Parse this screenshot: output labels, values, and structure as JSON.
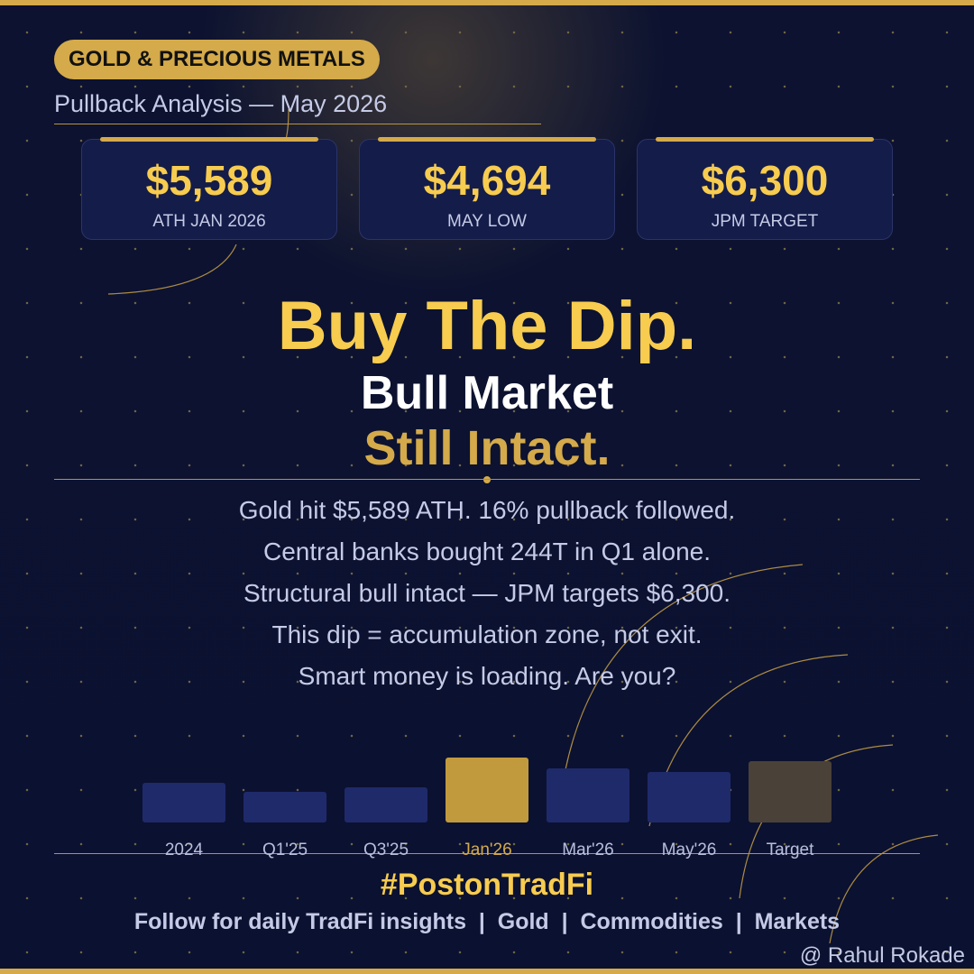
{
  "header": {
    "badge": "GOLD & PRECIOUS METALS",
    "subtitle": "Pullback Analysis — May 2026"
  },
  "stats": [
    {
      "value": "$5,589",
      "label": "ATH JAN 2026"
    },
    {
      "value": "$4,694",
      "label": "MAY LOW"
    },
    {
      "value": "$6,300",
      "label": "JPM TARGET"
    }
  ],
  "headline": {
    "line1": "Buy The Dip.",
    "line2": "Bull Market",
    "line3": "Still Intact."
  },
  "body": [
    "Gold hit $5,589 ATH. 16% pullback followed.",
    "Central banks bought 244T in Q1 alone.",
    "Structural bull intact — JPM targets $6,300.",
    "This dip = accumulation zone, not exit.",
    "Smart money is loading. Are you?"
  ],
  "timeline": [
    "2024",
    "Q1'25",
    "Q3'25",
    "Jan'26",
    "Mar'26",
    "May'26",
    "Target"
  ],
  "footer": {
    "hashtag": "#PostonTradFi",
    "tagline": "Follow for daily TradFi insights  |  Gold  |  Commodities  |  Markets",
    "credit": "@ Rahul Rokade"
  }
}
